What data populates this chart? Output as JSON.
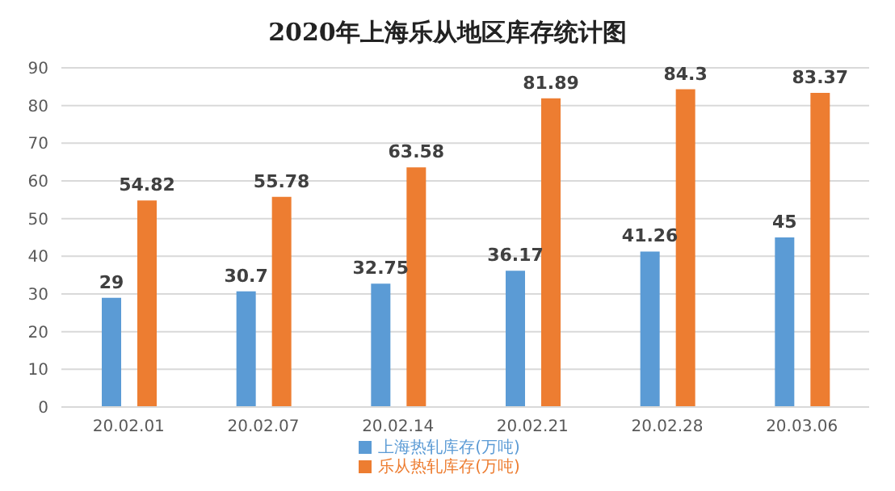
{
  "chart_data": {
    "type": "bar",
    "title": "2020年上海乐从地区库存统计图",
    "categories": [
      "20.02.01",
      "20.02.07",
      "20.02.14",
      "20.02.21",
      "20.02.28",
      "20.03.06"
    ],
    "series": [
      {
        "name": "上海热轧库存(万吨)",
        "color": "#5b9bd5",
        "values": [
          29,
          30.7,
          32.75,
          36.17,
          41.26,
          45
        ]
      },
      {
        "name": "乐从热轧库存(万吨)",
        "color": "#ed7d31",
        "values": [
          54.82,
          55.78,
          63.58,
          81.89,
          84.3,
          83.37
        ]
      }
    ],
    "ylim": [
      0,
      90
    ],
    "yticks": [
      0,
      10,
      20,
      30,
      40,
      50,
      60,
      70,
      80,
      90
    ],
    "grid": "y",
    "legend": "bottom",
    "data_labels": true
  }
}
